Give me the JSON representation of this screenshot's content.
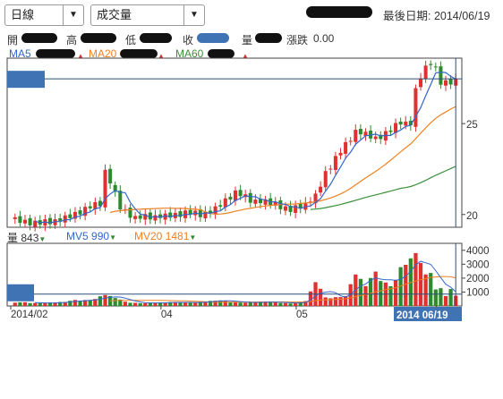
{
  "toolbar": {
    "period_select": "日線",
    "indicator_select": "成交量",
    "last_date_label": "最後日期: 2014/06/19"
  },
  "price_info": {
    "open_label": "開",
    "high_label": "高",
    "low_label": "低",
    "close_label": "收",
    "volume_label": "量",
    "change_label": "漲跌",
    "change_value": "0.00"
  },
  "ma_legend": [
    {
      "label": "MA5",
      "color": "#3366cc"
    },
    {
      "label": "MA20",
      "color": "#f08020"
    },
    {
      "label": "MA60",
      "color": "#3a8f3a"
    }
  ],
  "volume_legend": {
    "vol_label": "量",
    "vol_value": "843",
    "mv5_label": "MV5",
    "mv5_value": "990",
    "mv20_label": "MV20",
    "mv20_value": "1481"
  },
  "colors": {
    "up": "#e03030",
    "down": "#2d8a2d",
    "ma5": "#3366cc",
    "ma20": "#f08020",
    "ma60": "#3a8f3a",
    "cursor_label_bg": "#3f73b4"
  },
  "chart_data": {
    "type": "candlestick",
    "price_axis": {
      "ticks": [
        20,
        25
      ],
      "range": [
        19.3,
        28.6
      ]
    },
    "volume_axis": {
      "ticks": [
        1000,
        2000,
        3000,
        4000
      ],
      "range": [
        0,
        4500
      ]
    },
    "x_tick_labels": [
      "2014/02",
      "04",
      "05",
      "06"
    ],
    "cursor_date": "2014 06/19",
    "candles": [],
    "volume": [],
    "ma5": [],
    "ma20": [],
    "ma60": [],
    "mv5": [],
    "mv20": []
  }
}
